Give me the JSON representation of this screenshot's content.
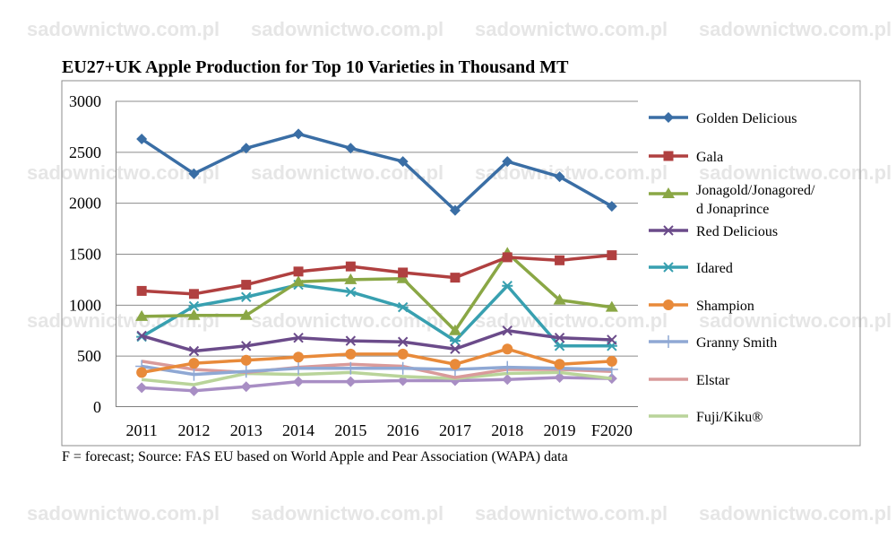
{
  "watermark": "sadownictwo.com.pl",
  "footnote": "F = forecast; Source: FAS EU based on World Apple and Pear Association (WAPA) data",
  "chart_data": {
    "type": "line",
    "title": "EU27+UK Apple Production for Top 10 Varieties in Thousand MT",
    "xlabel": "",
    "ylabel": "",
    "categories": [
      "2011",
      "2012",
      "2013",
      "2014",
      "2015",
      "2016",
      "2017",
      "2018",
      "2019",
      "F2020"
    ],
    "ylim": [
      0,
      3000
    ],
    "yticks": [
      0,
      500,
      1000,
      1500,
      2000,
      2500,
      3000
    ],
    "grid": true,
    "legend_position": "right",
    "series": [
      {
        "name": "Golden Delicious",
        "color": "#3a6ea5",
        "marker": "diamond",
        "values": [
          2630,
          2290,
          2540,
          2680,
          2540,
          2410,
          1930,
          2410,
          2260,
          1970
        ]
      },
      {
        "name": "Gala",
        "color": "#b04040",
        "marker": "square",
        "values": [
          1140,
          1110,
          1200,
          1330,
          1380,
          1320,
          1270,
          1470,
          1440,
          1490
        ]
      },
      {
        "name": "Jonagold/Jonagored/d Jonaprince",
        "color": "#8aa745",
        "marker": "triangle",
        "values": [
          890,
          900,
          900,
          1230,
          1250,
          1260,
          750,
          1510,
          1050,
          980
        ]
      },
      {
        "name": "Red Delicious",
        "color": "#6b4b8a",
        "marker": "x",
        "values": [
          700,
          550,
          600,
          680,
          650,
          640,
          570,
          750,
          680,
          660
        ]
      },
      {
        "name": "Idared",
        "color": "#38a0b0",
        "marker": "asterisk",
        "values": [
          690,
          990,
          1080,
          1200,
          1130,
          980,
          650,
          1190,
          600,
          600
        ]
      },
      {
        "name": "Shampion",
        "color": "#e88a3a",
        "marker": "circle",
        "values": [
          340,
          430,
          460,
          490,
          520,
          520,
          420,
          570,
          420,
          450
        ]
      },
      {
        "name": "Granny Smith",
        "color": "#8fa8d4",
        "marker": "plus",
        "values": [
          400,
          320,
          350,
          380,
          380,
          380,
          370,
          390,
          380,
          370
        ]
      },
      {
        "name": "Elstar",
        "color": "#d99a9a",
        "marker": "none",
        "values": [
          450,
          370,
          340,
          390,
          420,
          400,
          290,
          370,
          370,
          350
        ]
      },
      {
        "name": "Fuji/Kiku®",
        "color": "#b9d49a",
        "marker": "none",
        "values": [
          270,
          220,
          330,
          320,
          340,
          300,
          280,
          330,
          340,
          280
        ]
      },
      {
        "name": "",
        "color": "#a88ec4",
        "marker": "diamond",
        "values": [
          190,
          160,
          200,
          250,
          250,
          260,
          260,
          270,
          290,
          280
        ]
      }
    ]
  }
}
